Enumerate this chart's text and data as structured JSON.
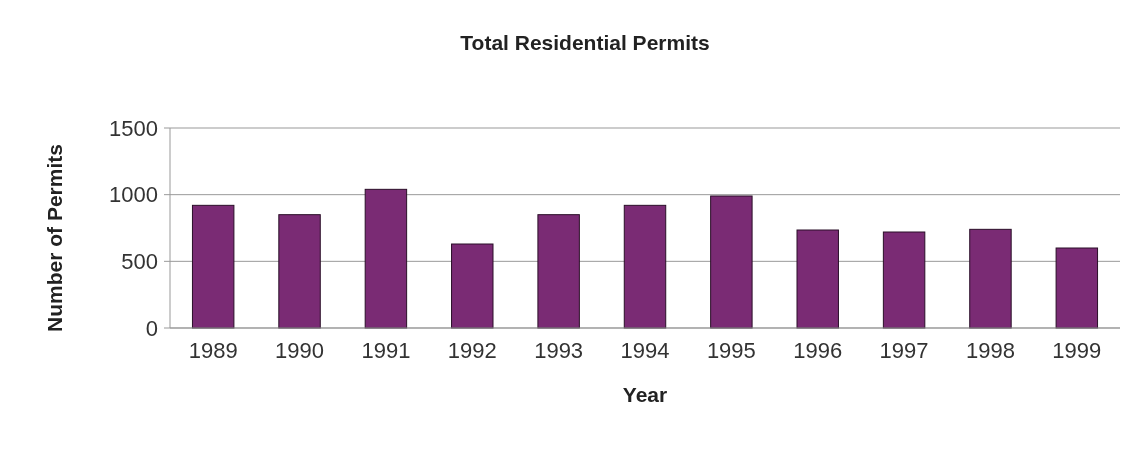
{
  "chart_data": {
    "type": "bar",
    "title": "Total Residential Permits",
    "xlabel": "Year",
    "ylabel": "Number of Permits",
    "categories": [
      "1989",
      "1990",
      "1991",
      "1992",
      "1993",
      "1994",
      "1995",
      "1996",
      "1997",
      "1998",
      "1999"
    ],
    "values": [
      920,
      850,
      1040,
      630,
      850,
      920,
      990,
      735,
      720,
      740,
      600
    ],
    "color": "#7a2b74",
    "ylim": [
      0,
      1500
    ],
    "yticks": [
      0,
      500,
      1000,
      1500
    ],
    "grid": "y"
  }
}
